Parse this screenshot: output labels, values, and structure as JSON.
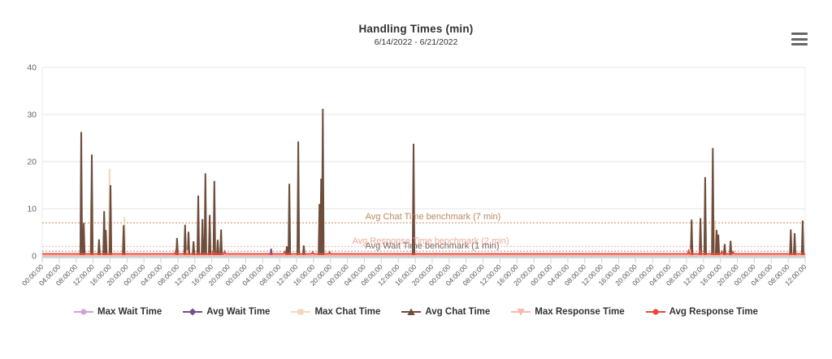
{
  "header": {
    "title": "Handling Times (min)",
    "subtitle": "6/14/2022 - 6/21/2022"
  },
  "menu": {
    "icon": "hamburger-icon",
    "tooltip": "Chart context menu"
  },
  "chart_data": {
    "type": "line",
    "title": "Handling Times (min)",
    "subtitle": "6/14/2022 - 6/21/2022",
    "ylabel": "",
    "xlabel": "",
    "ylim": [
      0,
      40
    ],
    "yticks": [
      0,
      10,
      20,
      30,
      40
    ],
    "grid": "horizontal-only",
    "x_hours_range": [
      0,
      180
    ],
    "x_tick_interval_hours": 4,
    "x_tick_labels": [
      "00:00:00",
      "04:00:00",
      "08:00:00",
      "12:00:00",
      "16:00:00",
      "20:00:00",
      "00:00:00",
      "04:00:00",
      "08:00:00",
      "12:00:00",
      "16:00:00",
      "20:00:00",
      "00:00:00",
      "04:00:00",
      "08:00:00",
      "12:00:00",
      "16:00:00",
      "20:00:00",
      "00:00:00",
      "04:00:00",
      "08:00:00",
      "12:00:00",
      "16:00:00",
      "20:00:00",
      "00:00:00",
      "04:00:00",
      "08:00:00",
      "12:00:00",
      "16:00:00",
      "20:00:00",
      "00:00:00",
      "04:00:00",
      "08:00:00",
      "12:00:00",
      "16:00:00",
      "20:00:00",
      "00:00:00",
      "04:00:00",
      "08:00:00",
      "12:00:00",
      "16:00:00",
      "20:00:00",
      "00:00:00",
      "04:00:00",
      "08:00:00",
      "12:00:00"
    ],
    "benchmarks": [
      {
        "label": "Avg Chat Time benchmark (7 min)",
        "value": 7,
        "line_color": "#cd8d62",
        "text_color": "#b8895f"
      },
      {
        "label": "Avg Response Time benchmark (2 min)",
        "value": 2,
        "line_color": "#f2b0a6",
        "text_color": "#efa89b"
      },
      {
        "label": "Avg Wait Time benchmark (1 min)",
        "value": 1,
        "line_color": "#a59486",
        "text_color": "#77695f"
      }
    ],
    "series": [
      {
        "name": "Max Wait Time",
        "color": "#cfa3d5",
        "marker": "circle",
        "baseline": 0,
        "spikes": []
      },
      {
        "name": "Avg Wait Time",
        "color": "#6f5291",
        "marker": "diamond",
        "baseline": 0,
        "spikes": [
          [
            54.0,
            1.5
          ],
          [
            87.5,
            0.6
          ]
        ]
      },
      {
        "name": "Max Chat Time",
        "color": "#eed9bd",
        "marker": "square",
        "baseline": 0,
        "spikes": [
          [
            11.5,
            12.0
          ],
          [
            15.9,
            18.5
          ],
          [
            19.4,
            8.2
          ],
          [
            158.7,
            7.5
          ]
        ]
      },
      {
        "name": "Avg Chat Time",
        "color": "#6e4d3c",
        "marker": "triangle",
        "baseline": 0,
        "spikes": [
          [
            9.2,
            26.3
          ],
          [
            9.8,
            7.0
          ],
          [
            11.7,
            21.5
          ],
          [
            13.4,
            3.5
          ],
          [
            14.6,
            9.5
          ],
          [
            15.0,
            5.5
          ],
          [
            16.1,
            15.0
          ],
          [
            19.2,
            6.5
          ],
          [
            31.8,
            3.8
          ],
          [
            33.7,
            6.6
          ],
          [
            34.5,
            5.1
          ],
          [
            35.7,
            3.1
          ],
          [
            36.8,
            12.8
          ],
          [
            37.8,
            7.8
          ],
          [
            38.5,
            17.5
          ],
          [
            39.5,
            8.7
          ],
          [
            40.6,
            15.9
          ],
          [
            41.4,
            3.4
          ],
          [
            42.2,
            5.6
          ],
          [
            57.7,
            2.0
          ],
          [
            58.3,
            15.3
          ],
          [
            60.4,
            24.3
          ],
          [
            61.7,
            2.2
          ],
          [
            65.4,
            11.0
          ],
          [
            65.8,
            16.4
          ],
          [
            66.2,
            31.2
          ],
          [
            87.6,
            23.8
          ],
          [
            153.2,
            7.7
          ],
          [
            155.3,
            8.0
          ],
          [
            156.4,
            16.7
          ],
          [
            158.2,
            22.9
          ],
          [
            159.1,
            5.5
          ],
          [
            159.5,
            4.5
          ],
          [
            161.0,
            2.5
          ],
          [
            162.4,
            3.2
          ],
          [
            176.6,
            5.6
          ],
          [
            177.5,
            4.8
          ],
          [
            179.4,
            7.5
          ]
        ]
      },
      {
        "name": "Max Response Time",
        "color": "#f6b9ae",
        "marker": "triangle-down",
        "baseline": 0,
        "spikes": [
          [
            34.2,
            1.3
          ],
          [
            152.8,
            1.4
          ]
        ]
      },
      {
        "name": "Avg Response Time",
        "color": "#e8493a",
        "marker": "circle",
        "baseline": 0.4,
        "spikes": [
          [
            31.5,
            1.0
          ],
          [
            40.3,
            1.0
          ],
          [
            43.0,
            0.9
          ],
          [
            57.2,
            0.8
          ],
          [
            63.8,
            0.8
          ],
          [
            67.8,
            0.8
          ],
          [
            152.5,
            1.0
          ],
          [
            155.3,
            1.1
          ],
          [
            160.3,
            0.9
          ],
          [
            163.0,
            0.8
          ]
        ]
      }
    ],
    "legend_position": "bottom"
  },
  "axis_style": {
    "axis_line_color": "#b9cdd8",
    "tick_color": "#c3d2dc",
    "grid_color": "#e5e5e5",
    "label_color": "#555555",
    "ytick_color": "#666666"
  }
}
